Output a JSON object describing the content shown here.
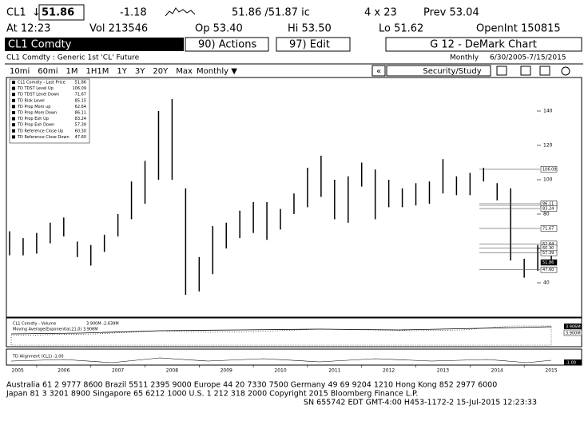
{
  "quote": {
    "ticker": "CL1",
    "last": "51.86",
    "change": "-1.18",
    "bid_ask": "51.86 /51.87 ic",
    "size": "4 x 23",
    "prev": "Prev 53.04",
    "time": "At 12:23",
    "vol": "Vol  213546",
    "open": "Op  53.40",
    "high": "Hi  53.50",
    "low": "Lo  51.62",
    "open_int": "OpenInt 150815"
  },
  "menu": {
    "security": "CL1 Comdty",
    "actions": "90) Actions",
    "edit": "97) Edit",
    "function": "G 12 - DeMark Chart"
  },
  "subheader": {
    "description": "CL1 Comdty : Generic 1st 'CL' Future",
    "period": "Monthly",
    "range": "6/30/2005-7/15/2015"
  },
  "toolbar": {
    "buttons": [
      "10mi",
      "60mi",
      "1M",
      "1H1M",
      "1Y",
      "3Y",
      "20Y",
      "Max"
    ],
    "frequency": "Monthly ▼",
    "back": "«",
    "study": "Security/Study"
  },
  "chart_data": {
    "type": "range-bar",
    "color": "#000000",
    "legend": [
      {
        "name": "CL1 Comdty - Last Price",
        "value": 51.86
      },
      {
        "name": "TD TDST Level Up",
        "value": 106.09
      },
      {
        "name": "TD TDST Level Down",
        "value": 71.67
      },
      {
        "name": "TD Risk Level",
        "value": 85.15
      },
      {
        "name": "TD Prop Mom up",
        "value": 62.64
      },
      {
        "name": "TD Prop Mom Down",
        "value": 86.11
      },
      {
        "name": "TD Prop Exh Up",
        "value": 83.24
      },
      {
        "name": "TD Prop Exh Down",
        "value": 57.39
      },
      {
        "name": "TD Reference Close Up",
        "value": {
          "value": 60.3,
          "label": "60.30"
        }
      },
      {
        "name": "TD Reference Close Down",
        "value": {
          "value": 47.6,
          "label": "47.60"
        }
      }
    ],
    "x": [
      2005.5,
      2005.75,
      2006.0,
      2006.25,
      2006.5,
      2006.75,
      2007.0,
      2007.25,
      2007.5,
      2007.75,
      2008.0,
      2008.25,
      2008.5,
      2008.75,
      2009.0,
      2009.25,
      2009.5,
      2009.75,
      2010.0,
      2010.25,
      2010.5,
      2010.75,
      2011.0,
      2011.25,
      2011.5,
      2011.75,
      2012.0,
      2012.25,
      2012.5,
      2012.75,
      2013.0,
      2013.25,
      2013.5,
      2013.75,
      2014.0,
      2014.25,
      2014.5,
      2014.75,
      2015.0,
      2015.25,
      2015.5
    ],
    "highs": [
      70,
      66,
      69,
      75,
      78,
      64,
      62,
      68,
      80,
      99,
      111,
      140,
      147,
      95,
      55,
      73,
      75,
      82,
      87,
      87,
      83,
      92,
      107,
      114,
      100,
      102,
      110,
      106,
      100,
      95,
      98,
      99,
      112,
      102,
      104,
      107,
      98,
      95,
      54,
      62,
      62
    ],
    "lows": [
      56,
      56,
      57,
      63,
      67,
      55,
      50,
      58,
      67,
      77,
      86,
      100,
      100,
      33,
      35,
      45,
      60,
      66,
      69,
      65,
      71,
      80,
      84,
      90,
      77,
      75,
      96,
      77,
      84,
      84,
      85,
      86,
      92,
      91,
      91,
      99,
      88,
      53,
      43,
      47,
      51
    ],
    "xlim": [
      2005.5,
      2015.75
    ],
    "ylim": [
      20,
      160
    ],
    "yticks": [
      140,
      120,
      100,
      80,
      60,
      40
    ],
    "year_labels": [
      "2005",
      "2006",
      "2007",
      "2008",
      "2009",
      "2010",
      "2011",
      "2012",
      "2013",
      "2014",
      "2015"
    ]
  },
  "volume_panel": {
    "title": "CL1 Comdty - Volume",
    "values": "3.900M -2.639M",
    "ma": "Moving Average(Exponential,21,0) 3.906M",
    "tag_ma": "3.906M",
    "tag_vol": "3.900M"
  },
  "td_panel": {
    "title": "TD Alignment (CL1) -1.00",
    "tag": "-1.00"
  },
  "footer": [
    "Australia 61 2 9777 8600 Brazil 5511 2395 9000 Europe 44 20 7330 7500 Germany 49 69 9204 1210 Hong Kong 852 2977 6000",
    "Japan 81 3 3201 8900        Singapore 65 6212 1000        U.S. 1 212 318 2000           Copyright 2015 Bloomberg Finance L.P.",
    "SN 655742 EDT  GMT-4:00 H453-1172-2 15-Jul-2015 12:23:33"
  ]
}
